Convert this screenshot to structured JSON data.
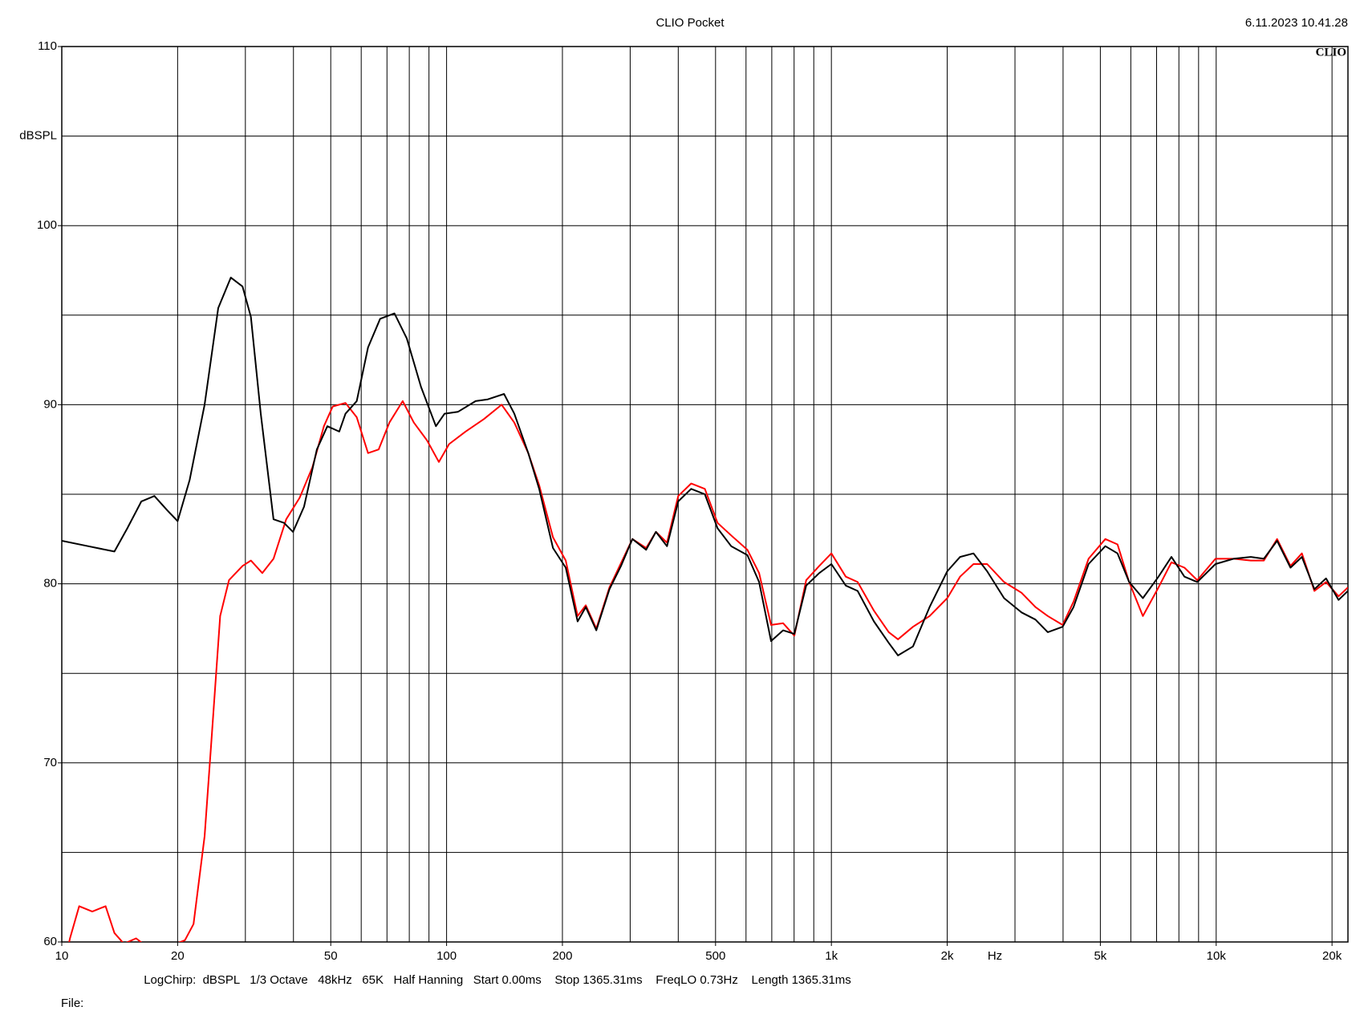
{
  "chart_data": {
    "type": "line",
    "title": "CLIO Pocket",
    "timestamp": "6.11.2023 10.41.28",
    "logo": "CLIO",
    "y_label": "dBSPL",
    "x_label": "Hz",
    "footer": "LogChirp:  dBSPL   1/3 Octave   48kHz   65K   Half Hanning   Start 0.00ms    Stop 1365.31ms    FreqLO 0.73Hz    Length 1365.31ms",
    "file_label": "File:",
    "xscale": "log",
    "xlim": [
      10,
      22000
    ],
    "ylim": [
      60,
      110
    ],
    "xticks": [
      10,
      20,
      50,
      100,
      200,
      500,
      {
        "value": 1000,
        "label": "1k"
      },
      {
        "value": 2000,
        "label": "2k"
      },
      {
        "value": 5000,
        "label": "5k"
      },
      {
        "value": 10000,
        "label": "10k"
      },
      {
        "value": 20000,
        "label": "20k"
      }
    ],
    "xgrid": [
      10,
      20,
      30,
      40,
      50,
      60,
      70,
      80,
      90,
      100,
      200,
      300,
      400,
      500,
      600,
      700,
      800,
      900,
      1000,
      2000,
      3000,
      4000,
      5000,
      6000,
      7000,
      8000,
      9000,
      10000,
      20000
    ],
    "yticks": [
      60,
      70,
      80,
      90,
      100,
      110
    ],
    "ygrid": [
      60,
      65,
      70,
      75,
      80,
      85,
      90,
      95,
      100,
      105,
      110
    ],
    "grid": true,
    "series": [
      {
        "color": "#000000",
        "x": [
          10,
          11.7,
          13.7,
          14.8,
          16.1,
          17.4,
          18.8,
          20,
          21.5,
          23.5,
          25.5,
          27.5,
          29.5,
          31,
          32.9,
          35.5,
          37.8,
          39.9,
          42.6,
          46,
          49,
          52.6,
          54.6,
          58.4,
          62.5,
          67.2,
          73.2,
          78.8,
          85.8,
          93.8,
          98.8,
          107,
          119,
          128,
          141,
          150,
          163,
          174,
          189,
          204,
          219,
          230,
          245,
          265,
          284,
          304,
          330,
          350,
          374,
          400,
          432,
          469,
          506,
          549,
          605,
          649,
          697,
          749,
          801,
          860,
          930,
          1000,
          1090,
          1170,
          1290,
          1410,
          1490,
          1630,
          1800,
          2000,
          2160,
          2340,
          2540,
          2810,
          3120,
          3390,
          3650,
          3990,
          4260,
          4660,
          5150,
          5540,
          5940,
          6450,
          7080,
          7650,
          8270,
          8930,
          9960,
          11100,
          12300,
          13300,
          14400,
          15600,
          16700,
          18000,
          19300,
          20800,
          22000
        ],
        "values": [
          82.4,
          82.1,
          81.8,
          83.1,
          84.6,
          84.9,
          84.1,
          83.5,
          85.8,
          90,
          95.4,
          97.1,
          96.6,
          94.9,
          89.5,
          83.6,
          83.4,
          82.9,
          84.3,
          87.5,
          88.8,
          88.5,
          89.5,
          90.2,
          93.2,
          94.8,
          95.1,
          93.7,
          91.0,
          88.8,
          89.5,
          89.6,
          90.2,
          90.3,
          90.6,
          89.5,
          87.3,
          85.3,
          82.0,
          80.9,
          77.9,
          78.7,
          77.4,
          79.7,
          81.0,
          82.5,
          81.9,
          82.9,
          82.1,
          84.6,
          85.3,
          85.0,
          83.1,
          82.1,
          81.6,
          80.1,
          76.8,
          77.4,
          77.2,
          79.9,
          80.6,
          81.1,
          79.9,
          79.6,
          77.9,
          76.7,
          76.0,
          76.5,
          78.7,
          80.7,
          81.5,
          81.7,
          80.7,
          79.2,
          78.4,
          78.0,
          77.3,
          77.6,
          78.7,
          81.1,
          82.1,
          81.7,
          80.1,
          79.2,
          80.4,
          81.5,
          80.4,
          80.1,
          81.1,
          81.4,
          81.5,
          81.4,
          82.4,
          80.9,
          81.5,
          79.7,
          80.3,
          79.1,
          79.6
        ]
      },
      {
        "color": "#ff0000",
        "x": [
          10,
          10.5,
          11.1,
          12,
          13,
          13.7,
          14.5,
          15.6,
          16.5,
          19.8,
          20.9,
          22,
          23.5,
          24.5,
          25.8,
          27.2,
          29.5,
          31,
          33.2,
          35.5,
          38.3,
          41.5,
          44.8,
          48,
          50.6,
          54.6,
          58.4,
          62.5,
          66.6,
          71,
          76.9,
          82.2,
          89,
          95.5,
          101.5,
          112,
          125,
          139,
          150,
          163,
          174,
          189,
          204,
          219,
          230,
          245,
          265,
          304,
          330,
          350,
          374,
          400,
          432,
          469,
          506,
          549,
          605,
          649,
          697,
          749,
          801,
          860,
          930,
          1000,
          1090,
          1170,
          1290,
          1410,
          1490,
          1630,
          1800,
          2000,
          2160,
          2340,
          2540,
          2810,
          3120,
          3390,
          3650,
          3990,
          4260,
          4660,
          5150,
          5540,
          5940,
          6450,
          7080,
          7650,
          8270,
          8930,
          9960,
          11100,
          12300,
          13300,
          14400,
          15600,
          16700,
          18000,
          19300,
          20800,
          22000
        ],
        "values": [
          58,
          60.2,
          62.0,
          61.7,
          62.0,
          60.5,
          59.9,
          60.2,
          59.8,
          59.9,
          60.1,
          61.0,
          65.9,
          71.3,
          78.2,
          80.2,
          81.0,
          81.3,
          80.6,
          81.4,
          83.6,
          84.8,
          86.5,
          88.8,
          89.9,
          90.1,
          89.3,
          87.3,
          87.5,
          89.0,
          90.2,
          89.0,
          88.0,
          86.8,
          87.8,
          88.5,
          89.2,
          90.0,
          89.0,
          87.3,
          85.5,
          82.6,
          81.3,
          78.2,
          78.8,
          77.5,
          79.8,
          82.5,
          82.0,
          82.9,
          82.3,
          84.9,
          85.6,
          85.3,
          83.4,
          82.7,
          81.9,
          80.6,
          77.7,
          77.8,
          77.1,
          80.2,
          81.0,
          81.7,
          80.4,
          80.1,
          78.5,
          77.3,
          76.9,
          77.6,
          78.2,
          79.2,
          80.4,
          81.1,
          81.1,
          80.1,
          79.5,
          78.7,
          78.2,
          77.7,
          79.0,
          81.4,
          82.5,
          82.2,
          80.1,
          78.2,
          79.8,
          81.2,
          80.9,
          80.2,
          81.4,
          81.4,
          81.3,
          81.3,
          82.5,
          81.0,
          81.7,
          79.6,
          80.1,
          79.3,
          79.8
        ]
      }
    ]
  }
}
